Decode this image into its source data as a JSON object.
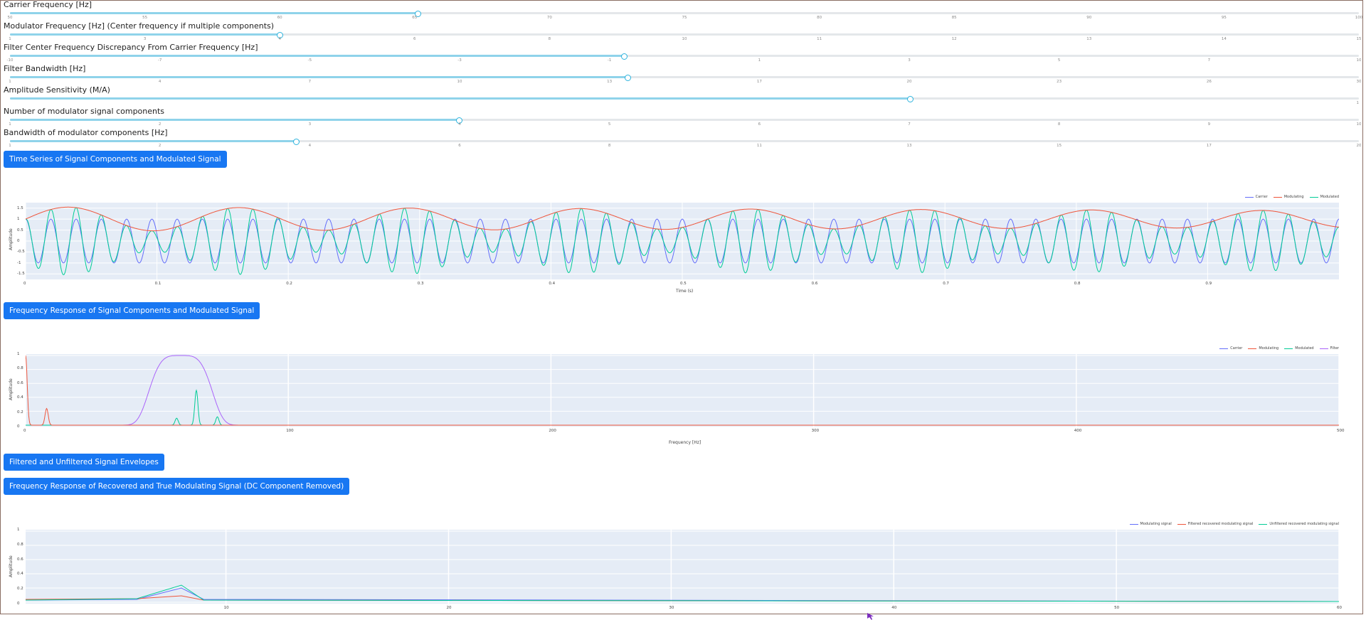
{
  "sliders": [
    {
      "label": "Carrier Frequency [Hz]",
      "value": 0.302,
      "ticks": [
        "50",
        "55",
        "60",
        "65",
        "70",
        "75",
        "80",
        "85",
        "90",
        "95",
        "100"
      ]
    },
    {
      "label": "Modulator Frequency [Hz] (Center frequency if multiple components)",
      "value": 0.2,
      "ticks": [
        "1",
        "3",
        "4",
        "6",
        "8",
        "10",
        "11",
        "12",
        "13",
        "14",
        "15"
      ]
    },
    {
      "label": "Filter Center Frequency Discrepancy From Carrier Frequency [Hz]",
      "value": 0.455,
      "ticks": [
        "-10",
        "-7",
        "-5",
        "-3",
        "-1",
        "1",
        "3",
        "5",
        "7",
        "10"
      ]
    },
    {
      "label": "Filter Bandwidth [Hz]",
      "value": 0.458,
      "ticks": [
        "1",
        "4",
        "7",
        "10",
        "13",
        "17",
        "20",
        "23",
        "26",
        "30"
      ]
    },
    {
      "label": "Amplitude Sensitivity (M/A)",
      "value": 0.667,
      "ticks": [
        "1"
      ]
    },
    {
      "label": "Number of modulator signal components",
      "value": 0.333,
      "ticks": [
        "1",
        "2",
        "3",
        "4",
        "5",
        "6",
        "7",
        "8",
        "9",
        "10"
      ]
    },
    {
      "label": "Bandwidth of modulator components [Hz]",
      "value": 0.212,
      "ticks": [
        "1",
        "2",
        "4",
        "6",
        "8",
        "11",
        "13",
        "15",
        "17",
        "20"
      ]
    }
  ],
  "buttons": {
    "time_series": "Time Series of Signal Components and Modulated Signal",
    "freq_response": "Frequency Response of Signal Components and Modulated Signal",
    "envelopes": "Filtered and Unfiltered Signal Envelopes",
    "recovered": "Frequency Response of Recovered and True Modulating Signal (DC Component Removed)"
  },
  "colors": {
    "blue": "#636efa",
    "red": "#ef553b",
    "green": "#00cc96",
    "purple": "#ab63fa",
    "plot_bg": "#e5ecf6",
    "button": "#1877f2"
  },
  "chart_data": [
    {
      "type": "line",
      "xlabel": "Time (s)",
      "ylabel": "Amplitude",
      "xlim": [
        0,
        1
      ],
      "ylim": [
        -1.75,
        1.75
      ],
      "xticks": [
        "0",
        "0.1",
        "0.2",
        "0.3",
        "0.4",
        "0.5",
        "0.6",
        "0.7",
        "0.8",
        "0.9"
      ],
      "yticks": [
        "1.5",
        "1",
        "0.5",
        "0",
        "-0.5",
        "-1",
        "-1.5"
      ],
      "series": [
        {
          "name": "Carrier",
          "color": "#636efa",
          "carrier_hz": 52,
          "amplitude": 1
        },
        {
          "name": "Modulating",
          "color": "#ef553b",
          "modulator_hz": 7.7,
          "offset": 1,
          "amplitude": 0.5
        },
        {
          "name": "Modulated",
          "color": "#00cc96"
        }
      ]
    },
    {
      "type": "line",
      "xlabel": "Frequency [Hz]",
      "ylabel": "Amplitude",
      "xlim": [
        0,
        500
      ],
      "ylim": [
        0,
        1
      ],
      "xticks": [
        "0",
        "100",
        "200",
        "300",
        "400",
        "500"
      ],
      "yticks": [
        "1",
        "0.8",
        "0.6",
        "0.4",
        "0.2",
        "0"
      ],
      "series": [
        {
          "name": "Carrier",
          "color": "#636efa",
          "peaks": [
            [
              58,
              0.0
            ]
          ]
        },
        {
          "name": "Modulating",
          "color": "#ef553b",
          "peaks": [
            [
              0,
              1.0
            ],
            [
              8,
              0.24
            ]
          ]
        },
        {
          "name": "Modulated",
          "color": "#00cc96",
          "peaks": [
            [
              57.5,
              0.1
            ],
            [
              65,
              0.5
            ],
            [
              73,
              0.12
            ]
          ]
        },
        {
          "name": "Filter",
          "color": "#ab63fa",
          "center": 59,
          "width": 12,
          "height": 1
        }
      ]
    },
    {
      "type": "line",
      "xlabel": "Frequency [Hz]",
      "ylabel": "Amplitude",
      "xlim": [
        1,
        60
      ],
      "ylim": [
        0,
        1
      ],
      "xticks": [
        "10",
        "20",
        "30",
        "40",
        "50",
        "60"
      ],
      "yticks": [
        "1",
        "0.8",
        "0.6",
        "0.4",
        "0.2",
        "0"
      ],
      "series": [
        {
          "name": "Modulating signal",
          "color": "#636efa",
          "points": [
            [
              1,
              0.03
            ],
            [
              6,
              0.04
            ],
            [
              8,
              0.2
            ],
            [
              9,
              0.04
            ],
            [
              60,
              0.01
            ]
          ]
        },
        {
          "name": "Filtered recovered  modulating signal",
          "color": "#ef553b",
          "points": [
            [
              1,
              0.04
            ],
            [
              6,
              0.05
            ],
            [
              8,
              0.09
            ],
            [
              9,
              0.03
            ],
            [
              60,
              0.01
            ]
          ]
        },
        {
          "name": "Unfiltered recovered  modulating signal",
          "color": "#00cc96",
          "points": [
            [
              1,
              0.03
            ],
            [
              6,
              0.05
            ],
            [
              8,
              0.24
            ],
            [
              9,
              0.03
            ],
            [
              60,
              0.01
            ]
          ]
        }
      ]
    }
  ]
}
